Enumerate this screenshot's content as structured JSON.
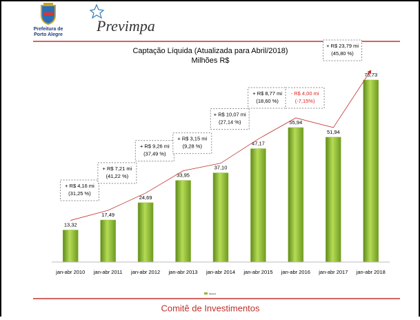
{
  "header": {
    "org": [
      "Prefeitura de",
      "Porto Alegre"
    ],
    "brand": "Previmpa"
  },
  "footer": "Comitê de Investimentos",
  "chart_data": {
    "type": "bar",
    "title": "Captação Líquida (Atualizada para Abril/2018)",
    "subtitle": "Milhões R$",
    "categories": [
      "jan-abr 2010",
      "jan-abr 2011",
      "jan-abr 2012",
      "jan-abr 2013",
      "jan-abr 2014",
      "jan-abr 2015",
      "jan-abr 2016",
      "jan-abr 2017",
      "jan-abr 2018"
    ],
    "series": [
      {
        "name": "Series1",
        "color": "#8db832",
        "values": [
          13.32,
          17.49,
          24.69,
          33.95,
          37.1,
          47.17,
          55.94,
          51.94,
          75.73
        ],
        "value_labels": [
          "13,32",
          "17,49",
          "24,69",
          "33,95",
          "37,10",
          "47,17",
          "55,94",
          "51,94",
          "75,73"
        ]
      }
    ],
    "trend_color": "#c0302a",
    "annotations": [
      {
        "lines": [
          "+ R$ 4,16 mi",
          "(31,25 %)"
        ],
        "color": "#000000"
      },
      {
        "lines": [
          "+ R$ 7,21 mi",
          "(41,22  %)"
        ],
        "color": "#000000"
      },
      {
        "lines": [
          "+ R$ 9,26  mi",
          "(37,49 %)"
        ],
        "color": "#000000"
      },
      {
        "lines": [
          "+ R$ 3,15  mi",
          "(9,28 %)"
        ],
        "color": "#000000"
      },
      {
        "lines": [
          "+ R$ 10,07  mi",
          "(27,14 %)"
        ],
        "color": "#000000"
      },
      {
        "lines": [
          "+ R$ 8,77 mi",
          "(18,60 %)"
        ],
        "color": "#000000"
      },
      {
        "lines": [
          "- R$ 4,00   mi",
          "(-7,15%)"
        ],
        "color": "#e02020"
      },
      {
        "lines": [
          "+ R$ 23,79  mi",
          "(45,80 %)"
        ],
        "color": "#000000"
      }
    ]
  }
}
